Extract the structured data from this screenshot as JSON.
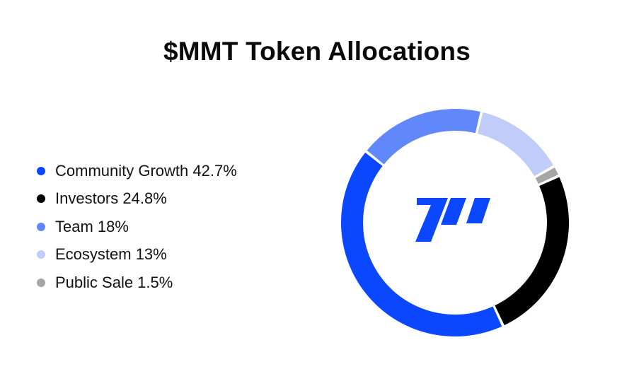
{
  "title": "$MMT Token Allocations",
  "legend": [
    {
      "label": "Community Growth 42.7%",
      "color": "#0a47ff"
    },
    {
      "label": "Investors 24.8%",
      "color": "#000000"
    },
    {
      "label": "Team 18%",
      "color": "#6088fb"
    },
    {
      "label": "Ecosystem 13%",
      "color": "#c0cdfa"
    },
    {
      "label": "Public Sale 1.5%",
      "color": "#a6a6a6"
    }
  ],
  "logo": {
    "name": "mmt-logo-icon",
    "color": "#0a47ff"
  },
  "chart_data": {
    "type": "pie",
    "variant": "donut",
    "title": "$MMT Token Allocations",
    "categories": [
      "Community Growth",
      "Investors",
      "Team",
      "Ecosystem",
      "Public Sale"
    ],
    "values": [
      42.7,
      24.8,
      18,
      13,
      1.5
    ],
    "unit": "%",
    "colors": [
      "#0a47ff",
      "#000000",
      "#6088fb",
      "#c0cdfa",
      "#a6a6a6"
    ],
    "legend_position": "left"
  }
}
